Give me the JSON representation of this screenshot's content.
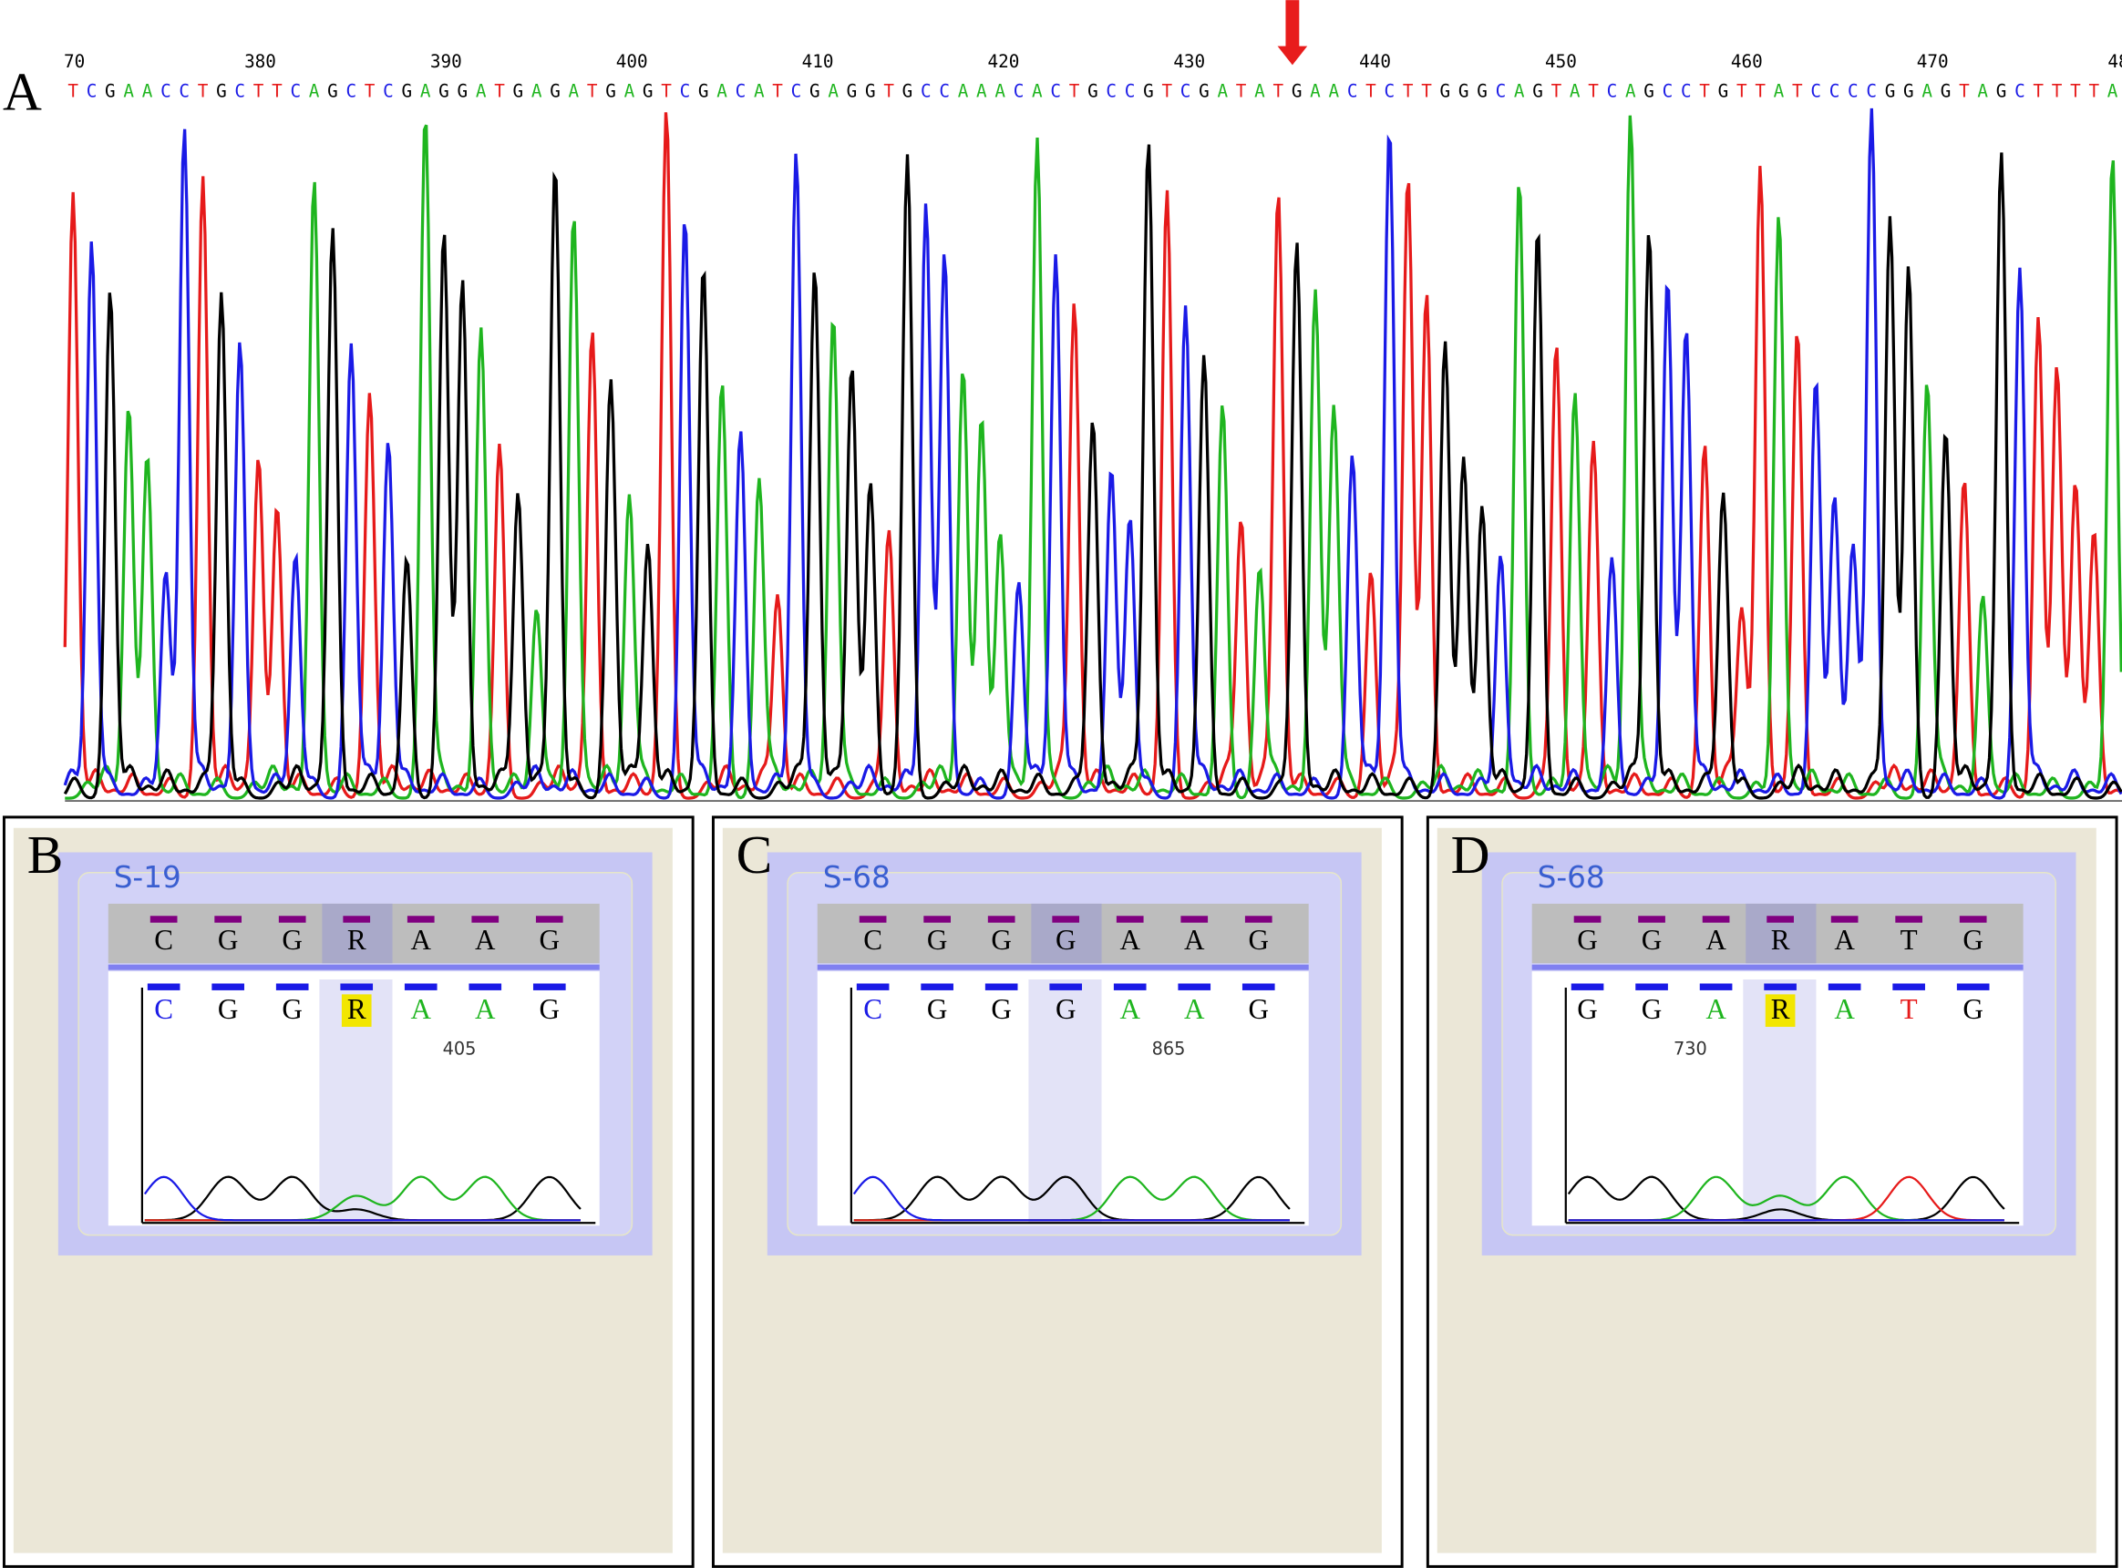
{
  "panel_a": {
    "label": "A",
    "position_ticks": [
      "70",
      "380",
      "390",
      "400",
      "410",
      "420",
      "430",
      "440",
      "450",
      "460",
      "470",
      "48"
    ],
    "sequence": "TCGAACCTGCTTCAGCTCGAGGATGAGATGAGTCGACATCGAGGTGCCAAACACTGCCGTCGATATGAACTCTTGGGCAGTATCAGCCTGTTATCCCCGGAGTAGCTTTTA"
  },
  "panels": [
    {
      "label": "B",
      "sample": "S-19",
      "reference": [
        "C",
        "G",
        "G",
        "R",
        "A",
        "A",
        "G"
      ],
      "read": [
        "C",
        "G",
        "G",
        "R",
        "A",
        "A",
        "G"
      ],
      "position": 405
    },
    {
      "label": "C",
      "sample": "S-68",
      "reference": [
        "C",
        "G",
        "G",
        "G",
        "A",
        "A",
        "G"
      ],
      "read": [
        "C",
        "G",
        "G",
        "G",
        "A",
        "A",
        "G"
      ],
      "position": 865
    },
    {
      "label": "D",
      "sample": "S-68",
      "reference": [
        "G",
        "G",
        "A",
        "R",
        "A",
        "T",
        "G"
      ],
      "read": [
        "G",
        "G",
        "A",
        "R",
        "A",
        "T",
        "G"
      ],
      "position": 730
    }
  ]
}
